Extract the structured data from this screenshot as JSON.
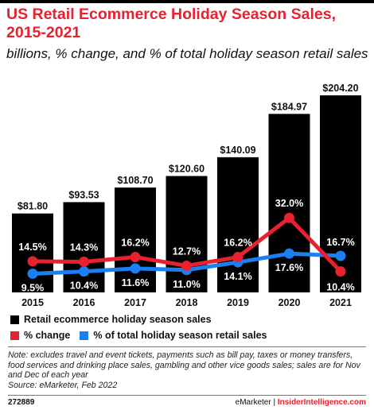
{
  "title": "US Retail Ecommerce Holiday Season Sales, 2015-2021",
  "subtitle": "billions, % change, and % of total holiday season retail sales",
  "chart_data": {
    "type": "bar",
    "categories": [
      "2015",
      "2016",
      "2017",
      "2018",
      "2019",
      "2020",
      "2021"
    ],
    "series": [
      {
        "name": "Retail ecommerce holiday season sales",
        "type": "bar",
        "values": [
          81.8,
          93.53,
          108.7,
          120.6,
          140.09,
          184.97,
          204.2
        ],
        "labels": [
          "$81.80",
          "$93.53",
          "$108.70",
          "$120.60",
          "$140.09",
          "$184.97",
          "$204.20"
        ],
        "color": "#000000"
      },
      {
        "name": "% change",
        "type": "line",
        "values": [
          14.5,
          14.3,
          16.2,
          12.7,
          16.2,
          32.0,
          10.4
        ],
        "labels": [
          "14.5%",
          "14.3%",
          "16.2%",
          "12.7%",
          "16.2%",
          "32.0%",
          "10.4%"
        ],
        "color": "#e8212e"
      },
      {
        "name": "% of total holiday season retail sales",
        "type": "line",
        "values": [
          9.5,
          10.4,
          11.6,
          11.0,
          14.1,
          17.6,
          16.7
        ],
        "labels": [
          "9.5%",
          "10.4%",
          "11.6%",
          "11.0%",
          "14.1%",
          "17.6%",
          "16.7%"
        ],
        "color": "#1a7ff0"
      }
    ],
    "xlabel": "",
    "ylabel": "",
    "grid": false
  },
  "legend": {
    "bar_label": "Retail ecommerce holiday season sales",
    "change_label": "% change",
    "share_label": "% of total holiday season retail sales"
  },
  "note": "Note: excludes travel and event tickets, payments such as bill pay, taxes or money transfers, food services and drinking place sales, gambling and other vice goods sales; sales are for Nov and Dec of each year",
  "source": "Source: eMarketer, Feb 2022",
  "footer": {
    "chart_id": "272889",
    "brand": "eMarketer",
    "separator": "|",
    "brand2": "InsiderIntelligence.com"
  }
}
